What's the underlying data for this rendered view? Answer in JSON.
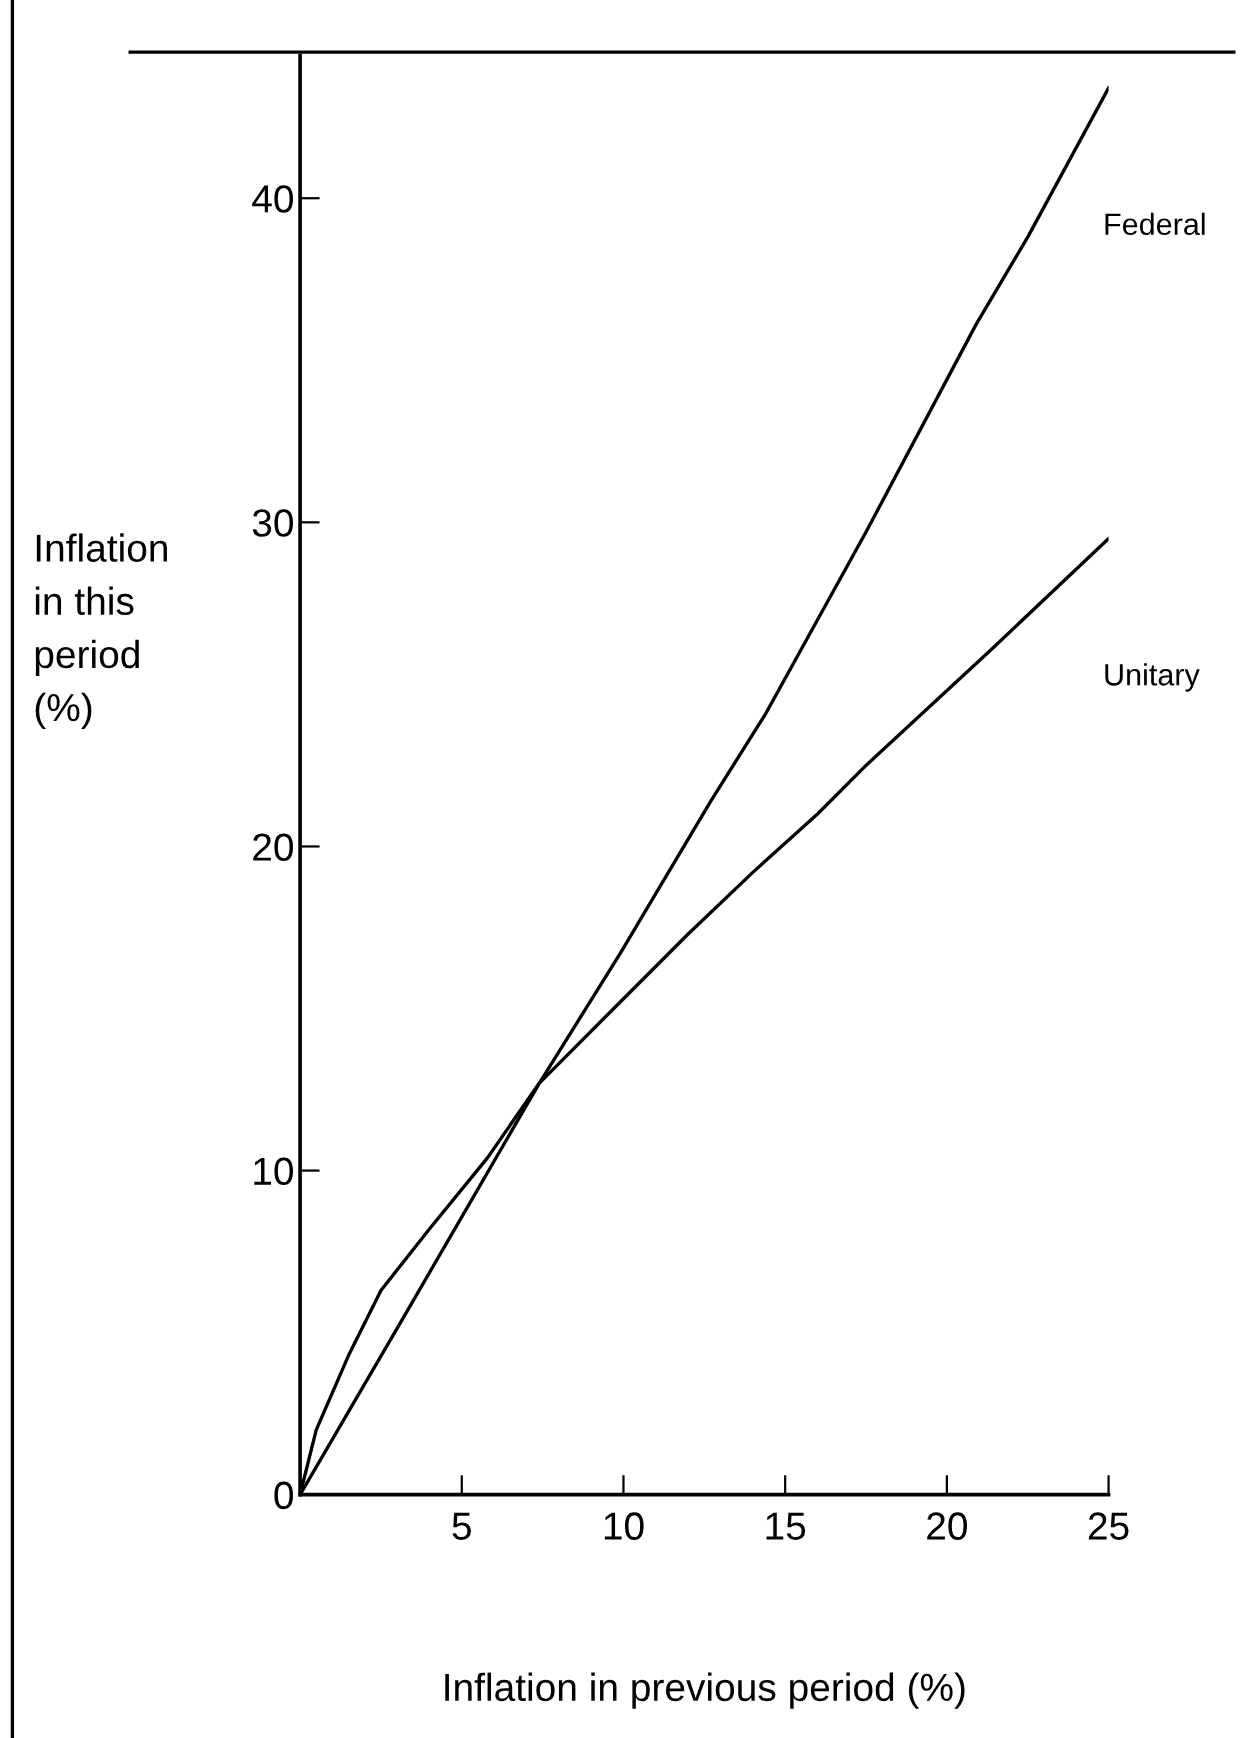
{
  "chart_data": {
    "type": "line",
    "xlabel": "Inflation in previous period (%)",
    "ylabel": "Inflation\nin this\nperiod\n(%)",
    "xlim": [
      0,
      25
    ],
    "ylim": [
      0,
      44.4
    ],
    "xticks": [
      {
        "value": 0,
        "label": null
      },
      5,
      10,
      15,
      20,
      25
    ],
    "yticks": [
      0,
      10,
      20,
      30,
      40
    ],
    "grid": false,
    "legend": false,
    "marker": "none",
    "line_style": "solid",
    "series": [
      {
        "name": "Federal",
        "color": "#000000",
        "x": [
          0,
          3.1,
          7.4,
          9.9,
          12.7,
          14.4,
          17.5,
          20.9,
          22.5,
          25
        ],
        "values": [
          0,
          5.3,
          12.7,
          16.7,
          21.4,
          24.1,
          29.7,
          36.1,
          38.8,
          43.4
        ]
      },
      {
        "name": "Unitary",
        "color": "#000000",
        "x": [
          0,
          0.5,
          1.5,
          2.5,
          4,
          5.8,
          7.4,
          9.7,
          12,
          14,
          16,
          17.5,
          21.4,
          25
        ],
        "values": [
          0,
          2.0,
          4.3,
          6.3,
          8.2,
          10.4,
          12.7,
          15.0,
          17.3,
          19.2,
          21.0,
          22.5,
          26.1,
          29.5
        ]
      }
    ]
  }
}
